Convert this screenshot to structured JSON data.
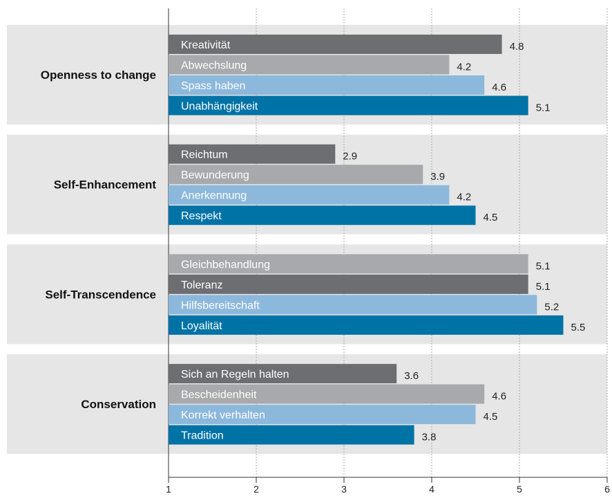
{
  "chart_data": {
    "type": "grouped-hbar",
    "xlim": [
      1,
      6
    ],
    "xticks": [
      1,
      2,
      3,
      4,
      5,
      6
    ],
    "grid": true,
    "groups": [
      {
        "name": "Openness to change",
        "bars": [
          {
            "label": "Kreativität",
            "value": 4.8,
            "color": "#6d6e71"
          },
          {
            "label": "Abwechslung",
            "value": 4.2,
            "color": "#a7a9ac"
          },
          {
            "label": "Spass haben",
            "value": 4.6,
            "color": "#8cb8db"
          },
          {
            "label": "Unabhängigkeit",
            "value": 5.1,
            "color": "#0073a6"
          }
        ]
      },
      {
        "name": "Self-Enhancement",
        "bars": [
          {
            "label": "Reichtum",
            "value": 2.9,
            "color": "#6d6e71"
          },
          {
            "label": "Bewunderung",
            "value": 3.9,
            "color": "#a7a9ac"
          },
          {
            "label": "Anerkennung",
            "value": 4.2,
            "color": "#8cb8db"
          },
          {
            "label": "Respekt",
            "value": 4.5,
            "color": "#0073a6"
          }
        ]
      },
      {
        "name": "Self-Transcendence",
        "bars": [
          {
            "label": "Gleichbehandlung",
            "value": 5.1,
            "color": "#a7a9ac"
          },
          {
            "label": "Toleranz",
            "value": 5.1,
            "color": "#6d6e71"
          },
          {
            "label": "Hilfsbereitschaft",
            "value": 5.2,
            "color": "#8cb8db"
          },
          {
            "label": "Loyalität",
            "value": 5.5,
            "color": "#0073a6"
          }
        ]
      },
      {
        "name": "Conservation",
        "bars": [
          {
            "label": "Sich an Regeln halten",
            "value": 3.6,
            "color": "#6d6e71"
          },
          {
            "label": "Bescheidenheit",
            "value": 4.6,
            "color": "#a7a9ac"
          },
          {
            "label": "Korrekt verhalten",
            "value": 4.5,
            "color": "#8cb8db"
          },
          {
            "label": "Tradition",
            "value": 3.8,
            "color": "#0073a6"
          }
        ]
      }
    ]
  }
}
